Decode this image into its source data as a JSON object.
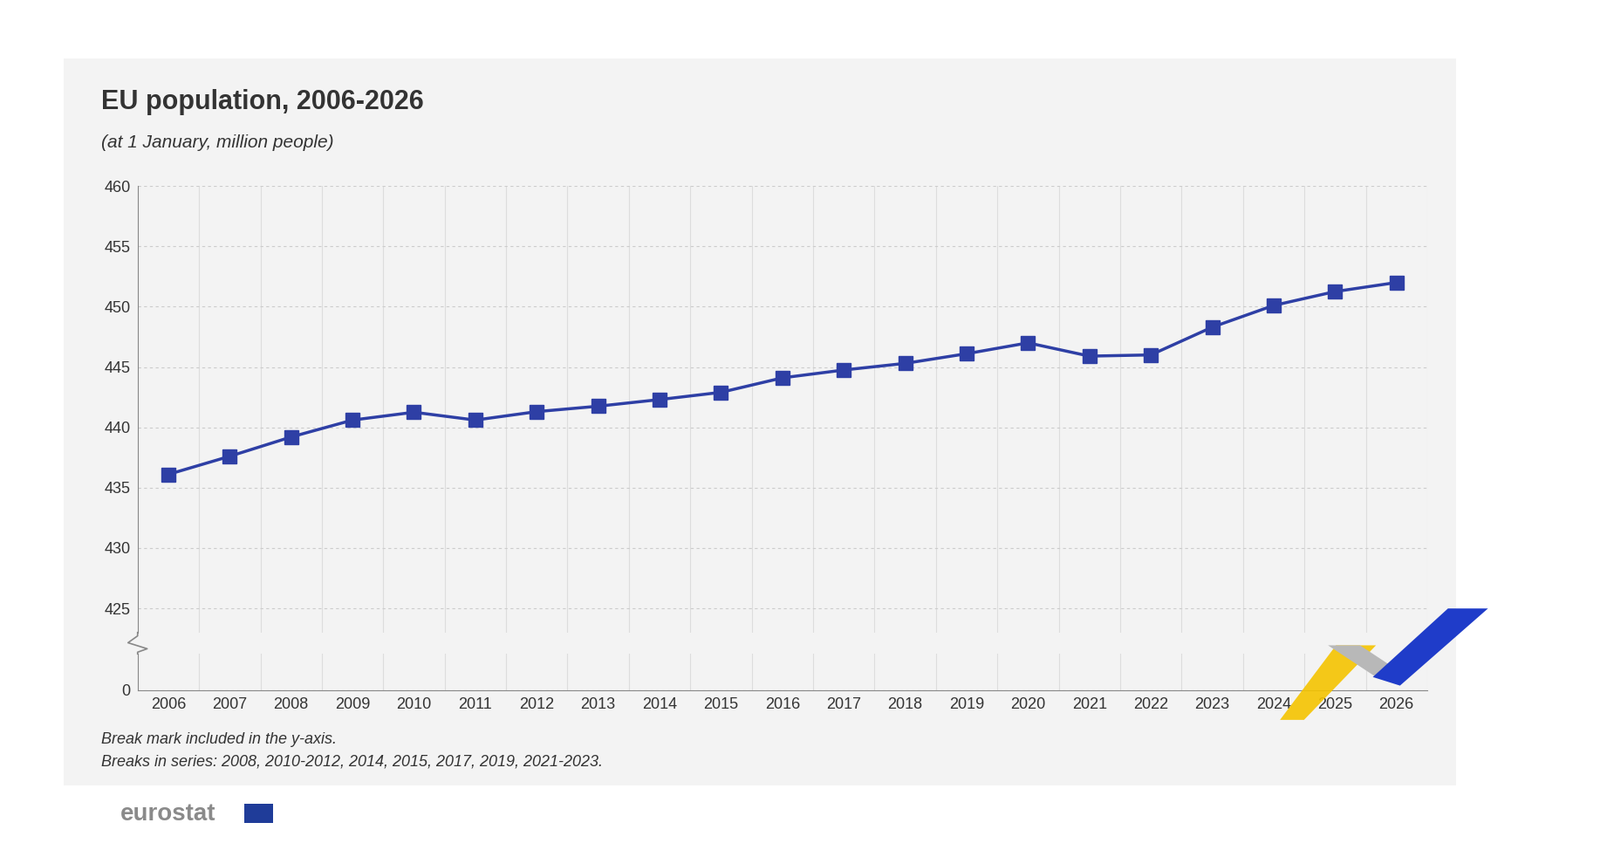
{
  "chart_data": [
    {
      "type": "line",
      "title": "EU population, 2006-2026",
      "subtitle": "(at 1 January, million people)",
      "categories": [
        "2006",
        "2007",
        "2008",
        "2009",
        "2010",
        "2011",
        "2012",
        "2013",
        "2014",
        "2015",
        "2016",
        "2017",
        "2018",
        "2019",
        "2020",
        "2021",
        "2022",
        "2023",
        "2024",
        "2025",
        "2026"
      ],
      "values": [
        436.1,
        437.6,
        439.2,
        440.6,
        441.25,
        440.6,
        441.3,
        441.75,
        442.3,
        442.9,
        444.1,
        444.75,
        445.3,
        446.1,
        447.0,
        445.9,
        446.0,
        448.3,
        450.1,
        451.25,
        452.0
      ],
      "color": "#2e3fa5",
      "marker": "square",
      "ylim": [
        423,
        460
      ],
      "yticks": [
        425,
        430,
        435,
        440,
        445,
        450,
        455,
        460
      ],
      "grid": true,
      "annotations": [
        "Break mark included in the y-axis.",
        "Breaks in series: 2008, 2010-2012, 2014, 2015, 2017, 2019, 2021-2023."
      ],
      "source": "eurostat"
    },
    {
      "type": "line",
      "categories": [
        "2006",
        "2007",
        "2008",
        "2009",
        "2010",
        "2011",
        "2012",
        "2013",
        "2014",
        "2015",
        "2016",
        "2017",
        "2018",
        "2019",
        "2020",
        "2021",
        "2022",
        "2023",
        "2024",
        "2025",
        "2026"
      ],
      "ylim": [
        0,
        1
      ],
      "yticks": [
        0
      ],
      "grid": true
    }
  ]
}
